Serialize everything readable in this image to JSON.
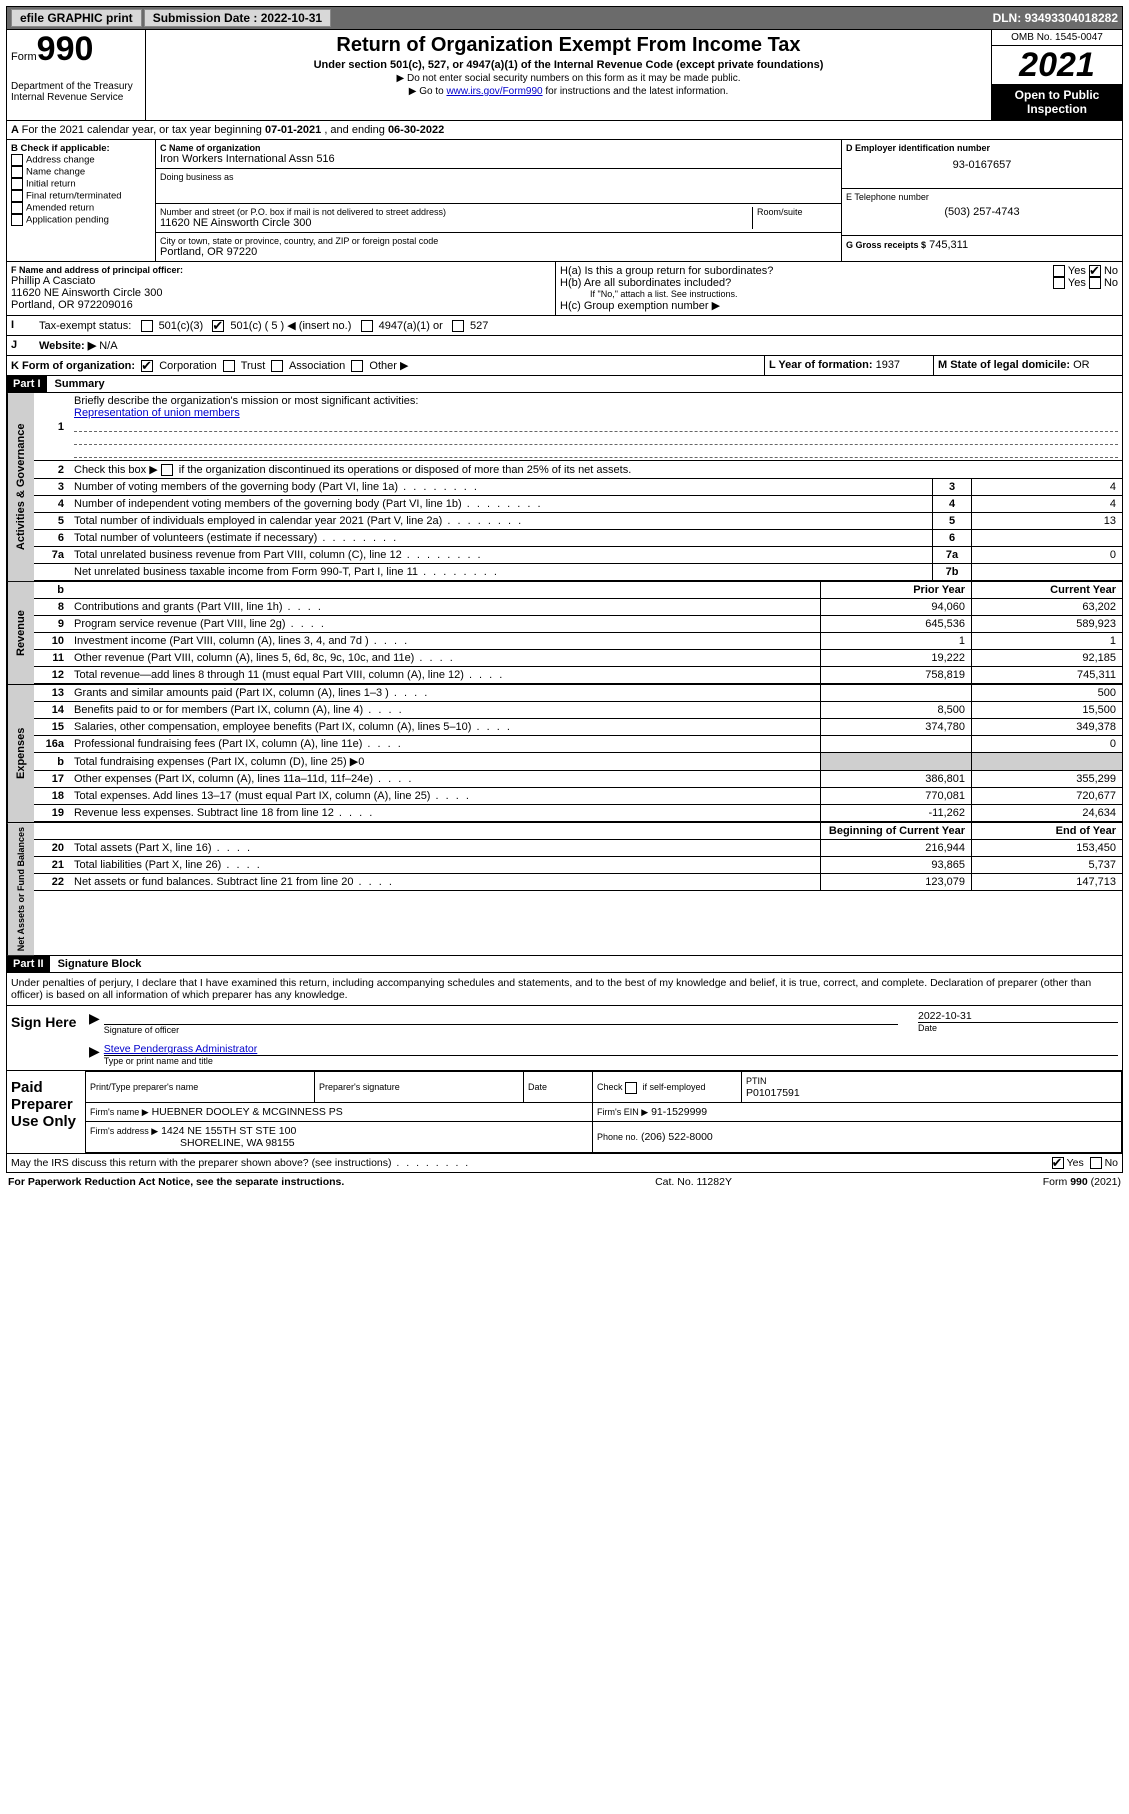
{
  "topbar": {
    "efile": "efile GRAPHIC print",
    "submission_label": "Submission Date : ",
    "submission_date": "2022-10-31",
    "dln_label": "DLN: ",
    "dln": "93493304018282"
  },
  "header": {
    "form_label": "Form",
    "form_number": "990",
    "dept1": "Department of the Treasury",
    "dept2": "Internal Revenue Service",
    "title": "Return of Organization Exempt From Income Tax",
    "subtitle": "Under section 501(c), 527, or 4947(a)(1) of the Internal Revenue Code (except private foundations)",
    "note1": "▶ Do not enter social security numbers on this form as it may be made public.",
    "note2_pre": "▶ Go to ",
    "note2_link": "www.irs.gov/Form990",
    "note2_post": " for instructions and the latest information.",
    "omb": "OMB No. 1545-0047",
    "year": "2021",
    "open_public": "Open to Public Inspection"
  },
  "A": {
    "text_pre": "For the 2021 calendar year, or tax year beginning ",
    "begin": "07-01-2021",
    "mid": " , and ending ",
    "end": "06-30-2022"
  },
  "B": {
    "label": "B Check if applicable:",
    "items": [
      "Address change",
      "Name change",
      "Initial return",
      "Final return/terminated",
      "Amended return",
      "Application pending"
    ]
  },
  "C": {
    "name_label": "C Name of organization",
    "name": "Iron Workers International Assn 516",
    "dba_label": "Doing business as",
    "addr_label": "Number and street (or P.O. box if mail is not delivered to street address)",
    "room_label": "Room/suite",
    "addr": "11620 NE Ainsworth Circle 300",
    "city_label": "City or town, state or province, country, and ZIP or foreign postal code",
    "city": "Portland, OR  97220"
  },
  "D": {
    "label": "D Employer identification number",
    "value": "93-0167657"
  },
  "E": {
    "label": "E Telephone number",
    "value": "(503) 257-4743"
  },
  "G": {
    "label": "G Gross receipts $",
    "value": "745,311"
  },
  "F": {
    "label": "F Name and address of principal officer:",
    "name": "Phillip A Casciato",
    "addr1": "11620 NE Ainsworth Circle 300",
    "addr2": "Portland, OR  972209016"
  },
  "H": {
    "a": "H(a)  Is this a group return for subordinates?",
    "b": "H(b)  Are all subordinates included?",
    "b_note": "If \"No,\" attach a list. See instructions.",
    "c": "H(c)  Group exemption number ▶",
    "yes": "Yes",
    "no": "No"
  },
  "I": {
    "label": "Tax-exempt status:",
    "opt1": "501(c)(3)",
    "opt2": "501(c) ( 5 ) ◀ (insert no.)",
    "opt3": "4947(a)(1) or",
    "opt4": "527"
  },
  "J": {
    "label": "Website: ▶",
    "value": "N/A"
  },
  "K": {
    "label": "K Form of organization:",
    "opts": [
      "Corporation",
      "Trust",
      "Association",
      "Other ▶"
    ]
  },
  "L": {
    "label": "L Year of formation:",
    "value": "1937"
  },
  "M": {
    "label": "M State of legal domicile:",
    "value": "OR"
  },
  "part1": {
    "header": "Part I",
    "title": "Summary",
    "line1_label": "Briefly describe the organization's mission or most significant activities:",
    "line1_value": "Representation of union members",
    "line2": "Check this box ▶        if the organization discontinued its operations or disposed of more than 25% of its net assets.",
    "rows_gov": [
      {
        "n": "3",
        "t": "Number of voting members of the governing body (Part VI, line 1a)",
        "c": "3",
        "v": "4"
      },
      {
        "n": "4",
        "t": "Number of independent voting members of the governing body (Part VI, line 1b)",
        "c": "4",
        "v": "4"
      },
      {
        "n": "5",
        "t": "Total number of individuals employed in calendar year 2021 (Part V, line 2a)",
        "c": "5",
        "v": "13"
      },
      {
        "n": "6",
        "t": "Total number of volunteers (estimate if necessary)",
        "c": "6",
        "v": ""
      },
      {
        "n": "7a",
        "t": "Total unrelated business revenue from Part VIII, column (C), line 12",
        "c": "7a",
        "v": "0"
      },
      {
        "n": "",
        "t": "Net unrelated business taxable income from Form 990-T, Part I, line 11",
        "c": "7b",
        "v": ""
      }
    ],
    "col_prior": "Prior Year",
    "col_current": "Current Year",
    "rows_rev": [
      {
        "n": "8",
        "t": "Contributions and grants (Part VIII, line 1h)",
        "p": "94,060",
        "c": "63,202"
      },
      {
        "n": "9",
        "t": "Program service revenue (Part VIII, line 2g)",
        "p": "645,536",
        "c": "589,923"
      },
      {
        "n": "10",
        "t": "Investment income (Part VIII, column (A), lines 3, 4, and 7d )",
        "p": "1",
        "c": "1"
      },
      {
        "n": "11",
        "t": "Other revenue (Part VIII, column (A), lines 5, 6d, 8c, 9c, 10c, and 11e)",
        "p": "19,222",
        "c": "92,185"
      },
      {
        "n": "12",
        "t": "Total revenue—add lines 8 through 11 (must equal Part VIII, column (A), line 12)",
        "p": "758,819",
        "c": "745,311"
      }
    ],
    "rows_exp": [
      {
        "n": "13",
        "t": "Grants and similar amounts paid (Part IX, column (A), lines 1–3 )",
        "p": "",
        "c": "500"
      },
      {
        "n": "14",
        "t": "Benefits paid to or for members (Part IX, column (A), line 4)",
        "p": "8,500",
        "c": "15,500"
      },
      {
        "n": "15",
        "t": "Salaries, other compensation, employee benefits (Part IX, column (A), lines 5–10)",
        "p": "374,780",
        "c": "349,378"
      },
      {
        "n": "16a",
        "t": "Professional fundraising fees (Part IX, column (A), line 11e)",
        "p": "",
        "c": "0"
      },
      {
        "n": "b",
        "t": "Total fundraising expenses (Part IX, column (D), line 25) ▶0",
        "p": "shade",
        "c": "shade"
      },
      {
        "n": "17",
        "t": "Other expenses (Part IX, column (A), lines 11a–11d, 11f–24e)",
        "p": "386,801",
        "c": "355,299"
      },
      {
        "n": "18",
        "t": "Total expenses. Add lines 13–17 (must equal Part IX, column (A), line 25)",
        "p": "770,081",
        "c": "720,677"
      },
      {
        "n": "19",
        "t": "Revenue less expenses. Subtract line 18 from line 12",
        "p": "-11,262",
        "c": "24,634"
      }
    ],
    "col_begin": "Beginning of Current Year",
    "col_end": "End of Year",
    "rows_net": [
      {
        "n": "20",
        "t": "Total assets (Part X, line 16)",
        "p": "216,944",
        "c": "153,450"
      },
      {
        "n": "21",
        "t": "Total liabilities (Part X, line 26)",
        "p": "93,865",
        "c": "5,737"
      },
      {
        "n": "22",
        "t": "Net assets or fund balances. Subtract line 21 from line 20",
        "p": "123,079",
        "c": "147,713"
      }
    ],
    "vlabels": {
      "gov": "Activities & Governance",
      "rev": "Revenue",
      "exp": "Expenses",
      "net": "Net Assets or Fund Balances"
    }
  },
  "part2": {
    "header": "Part II",
    "title": "Signature Block",
    "penalty": "Under penalties of perjury, I declare that I have examined this return, including accompanying schedules and statements, and to the best of my knowledge and belief, it is true, correct, and complete. Declaration of preparer (other than officer) is based on all information of which preparer has any knowledge.",
    "sign_here": "Sign Here",
    "sig_officer": "Signature of officer",
    "sig_date": "Date",
    "sig_date_val": "2022-10-31",
    "officer_name": "Steve Pendergrass Administrator",
    "officer_title_label": "Type or print name and title",
    "paid": "Paid Preparer Use Only",
    "prep_headers": [
      "Print/Type preparer's name",
      "Preparer's signature",
      "Date"
    ],
    "check_self": "Check         if self-employed",
    "ptin_label": "PTIN",
    "ptin": "P01017591",
    "firm_name_label": "Firm's name      ▶",
    "firm_name": "HUEBNER DOOLEY & MCGINNESS PS",
    "firm_ein_label": "Firm's EIN ▶",
    "firm_ein": "91-1529999",
    "firm_addr_label": "Firm's address ▶",
    "firm_addr1": "1424 NE 155TH ST STE 100",
    "firm_addr2": "SHORELINE, WA  98155",
    "phone_label": "Phone no.",
    "phone": "(206) 522-8000",
    "discuss": "May the IRS discuss this return with the preparer shown above? (see instructions)"
  },
  "footer": {
    "left": "For Paperwork Reduction Act Notice, see the separate instructions.",
    "mid": "Cat. No. 11282Y",
    "right": "Form 990 (2021)"
  }
}
